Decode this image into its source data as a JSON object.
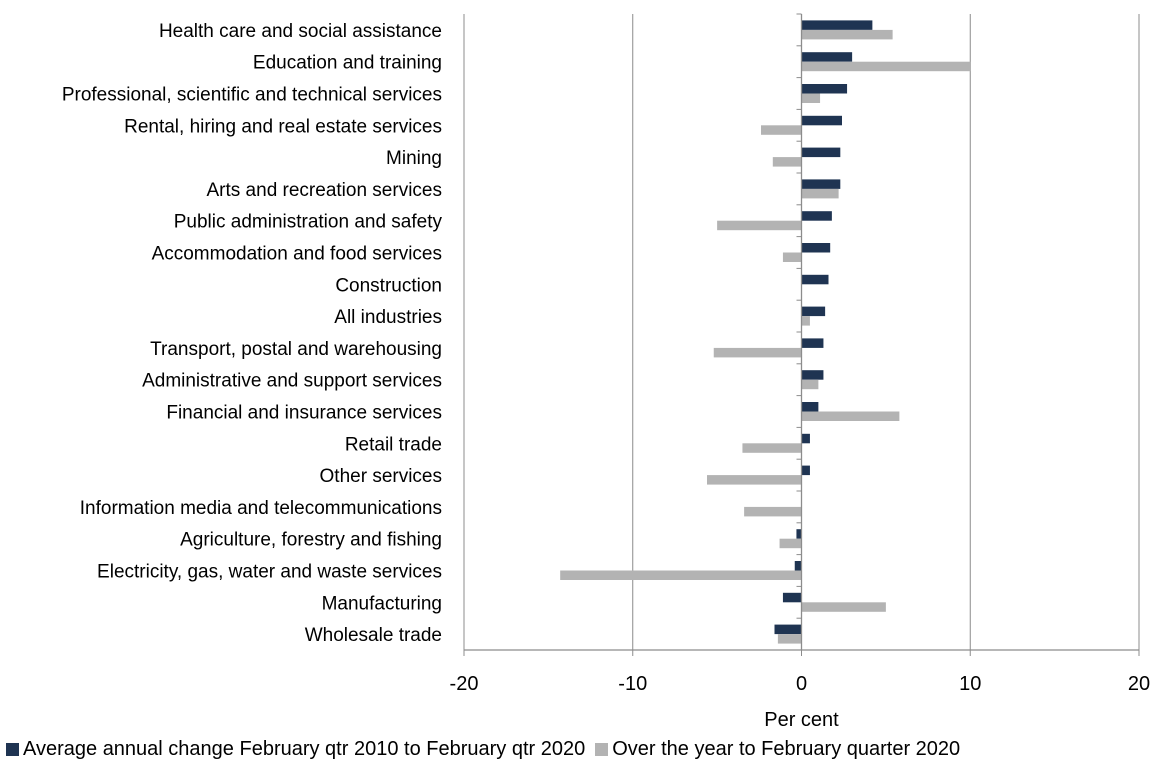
{
  "chart_data": {
    "type": "bar",
    "orientation": "horizontal",
    "xlabel": "Per cent",
    "xlim": [
      -20,
      20
    ],
    "xticks": [
      -20,
      -10,
      0,
      10,
      20
    ],
    "xtick_labels": [
      "-20",
      "-10",
      "0",
      "10",
      "20"
    ],
    "grid": "vertical",
    "legend_position": "bottom",
    "categories": [
      "Health care and social assistance",
      "Education and training",
      "Professional, scientific and technical services",
      "Rental, hiring and real estate services",
      "Mining",
      "Arts and recreation services",
      "Public administration and safety",
      "Accommodation and food services",
      "Construction",
      "All industries",
      "Transport, postal and warehousing",
      "Administrative and support services",
      "Financial and insurance services",
      "Retail trade",
      "Other services",
      "Information media and telecommunications",
      "Agriculture, forestry and fishing",
      "Electricity, gas, water and waste services",
      "Manufacturing",
      "Wholesale trade"
    ],
    "series": [
      {
        "name": "Average annual change February qtr 2010 to February qtr 2020",
        "color": "#1f3452",
        "values": [
          4.2,
          3.0,
          2.7,
          2.4,
          2.3,
          2.3,
          1.8,
          1.7,
          1.6,
          1.4,
          1.3,
          1.3,
          1.0,
          0.5,
          0.5,
          0.0,
          -0.3,
          -0.4,
          -1.1,
          -1.6
        ]
      },
      {
        "name": "Over the year to February quarter 2020",
        "color": "#b3b3b3",
        "values": [
          5.4,
          10.0,
          1.1,
          -2.4,
          -1.7,
          2.2,
          -5.0,
          -1.1,
          0.0,
          0.5,
          -5.2,
          1.0,
          5.8,
          -3.5,
          -5.6,
          -3.4,
          -1.3,
          -14.3,
          5.0,
          -1.4
        ]
      }
    ]
  }
}
